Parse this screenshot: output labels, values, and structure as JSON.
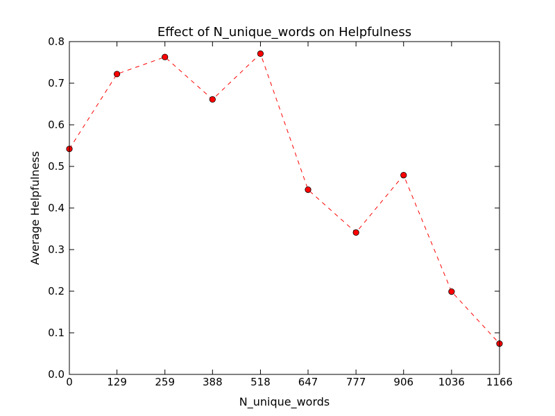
{
  "chart_data": {
    "type": "line",
    "title": "Effect of N_unique_words on Helpfulness",
    "xlabel": "N_unique_words",
    "ylabel": "Average Helpfulness",
    "x_ticks": [
      0,
      129,
      259,
      388,
      518,
      647,
      777,
      906,
      1036,
      1166
    ],
    "x_tick_labels": [
      "0",
      "129",
      "259",
      "388",
      "518",
      "647",
      "777",
      "906",
      "1036",
      "1166"
    ],
    "xlim": [
      0,
      1166
    ],
    "y_ticks": [
      0.0,
      0.1,
      0.2,
      0.3,
      0.4,
      0.5,
      0.6,
      0.7,
      0.8
    ],
    "y_tick_labels": [
      "0.0",
      "0.1",
      "0.2",
      "0.3",
      "0.4",
      "0.5",
      "0.6",
      "0.7",
      "0.8"
    ],
    "ylim": [
      0.0,
      0.8
    ],
    "grid": false,
    "series": [
      {
        "x": [
          0,
          129,
          259,
          388,
          518,
          647,
          777,
          906,
          1036,
          1166
        ],
        "values": [
          0.542,
          0.722,
          0.763,
          0.661,
          0.771,
          0.444,
          0.341,
          0.479,
          0.199,
          0.074
        ],
        "line_color": "#ff0000",
        "marker_color": "#ff0000",
        "line_style": "dashed",
        "marker": "circle"
      }
    ]
  }
}
